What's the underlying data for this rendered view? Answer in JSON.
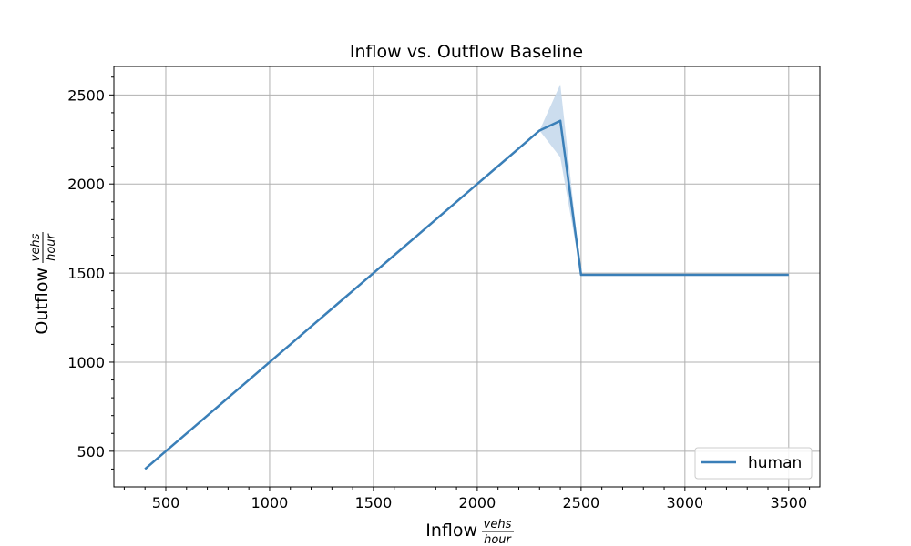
{
  "chart_data": {
    "type": "line",
    "title": "Inflow vs. Outflow Baseline",
    "xlabel": "Inflow",
    "ylabel": "Outflow",
    "unit": {
      "numerator": "vehs",
      "denominator": "hour"
    },
    "xlim": [
      250,
      3650
    ],
    "ylim": [
      300,
      2660
    ],
    "xticks": [
      500,
      1000,
      1500,
      2000,
      2500,
      3000,
      3500
    ],
    "yticks": [
      500,
      1000,
      1500,
      2000,
      2500
    ],
    "xtick_labels": [
      "500",
      "1000",
      "1500",
      "2000",
      "2500",
      "3000",
      "3500"
    ],
    "ytick_labels": [
      "500",
      "1000",
      "1500",
      "2000",
      "2500"
    ],
    "grid": true,
    "legend": {
      "position": "lower-right"
    },
    "series": [
      {
        "name": "human",
        "color": "#3a7fb8",
        "band_color": "#c6d9ec",
        "x": [
          400,
          500,
          600,
          700,
          800,
          900,
          1000,
          1100,
          1200,
          1300,
          1400,
          1500,
          1600,
          1700,
          1800,
          1900,
          2000,
          2100,
          2200,
          2300,
          2400,
          2500,
          2600,
          2700,
          2800,
          2900,
          3000,
          3100,
          3200,
          3300,
          3400,
          3500
        ],
        "y": [
          400,
          500,
          600,
          700,
          800,
          900,
          1000,
          1100,
          1200,
          1300,
          1400,
          1500,
          1600,
          1700,
          1800,
          1900,
          2000,
          2100,
          2200,
          2300,
          2355,
          1490,
          1490,
          1490,
          1490,
          1490,
          1490,
          1490,
          1490,
          1490,
          1490,
          1490
        ],
        "y_lower": [
          400,
          500,
          600,
          700,
          800,
          900,
          1000,
          1100,
          1200,
          1300,
          1400,
          1500,
          1600,
          1700,
          1800,
          1900,
          2000,
          2100,
          2200,
          2300,
          2150,
          1490,
          1490,
          1490,
          1490,
          1490,
          1490,
          1490,
          1490,
          1490,
          1490,
          1490
        ],
        "y_upper": [
          400,
          500,
          600,
          700,
          800,
          900,
          1000,
          1100,
          1200,
          1300,
          1400,
          1500,
          1600,
          1700,
          1800,
          1900,
          2000,
          2100,
          2200,
          2300,
          2560,
          1490,
          1490,
          1490,
          1490,
          1490,
          1490,
          1490,
          1490,
          1490,
          1490,
          1490
        ]
      }
    ]
  }
}
